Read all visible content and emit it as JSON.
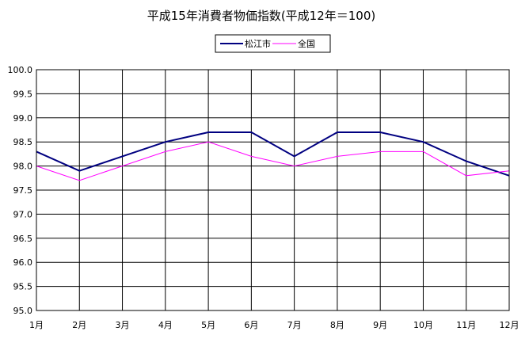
{
  "chart_data": {
    "type": "line",
    "title": "平成15年消費者物価指数(平成12年＝100)",
    "categories": [
      "1月",
      "2月",
      "3月",
      "4月",
      "5月",
      "6月",
      "7月",
      "8月",
      "9月",
      "10月",
      "11月",
      "12月"
    ],
    "y_ticks": [
      "100.0",
      "99.5",
      "99.0",
      "98.5",
      "98.0",
      "97.5",
      "97.0",
      "96.5",
      "96.0",
      "95.5",
      "95.0"
    ],
    "ylim": [
      95.0,
      100.0
    ],
    "grid": true,
    "legend_placement": "top-center",
    "series": [
      {
        "name": "松江市",
        "color": "#000080",
        "values": [
          98.3,
          97.9,
          98.2,
          98.5,
          98.7,
          98.7,
          98.2,
          98.7,
          98.7,
          98.5,
          98.1,
          97.8
        ]
      },
      {
        "name": "全国",
        "color": "#ff00ff",
        "values": [
          98.0,
          97.7,
          98.0,
          98.3,
          98.5,
          98.2,
          98.0,
          98.2,
          98.3,
          98.3,
          97.8,
          97.9
        ]
      }
    ]
  }
}
